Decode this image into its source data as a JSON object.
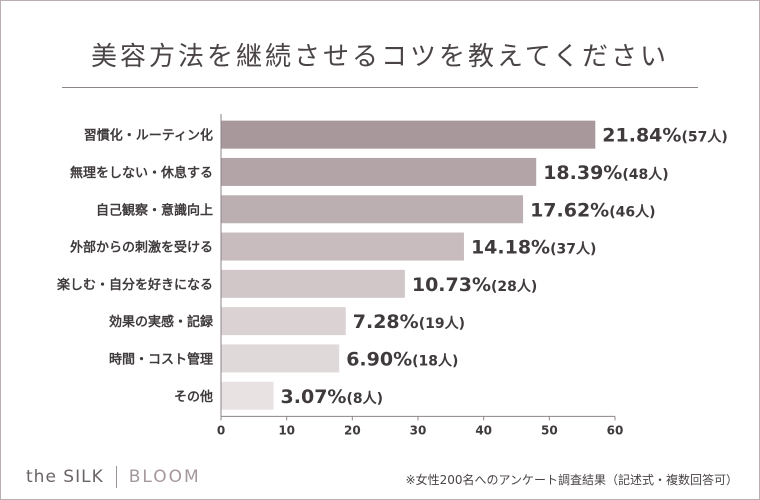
{
  "title": "美容方法を継続させるコツを教えてください",
  "footer": {
    "brand_left": "the SILK",
    "brand_right": "BLOOM",
    "note": "※女性200名へのアンケート調査結果（記述式・複数回答可）"
  },
  "chart_data": {
    "type": "bar",
    "orientation": "horizontal",
    "title": "美容方法を継続させるコツを教えてください",
    "categories": [
      "習慣化・ルーティン化",
      "無理をしない・休息する",
      "自己観察・意識向上",
      "外部からの刺激を受ける",
      "楽しむ・自分を好きになる",
      "効果の実感・記録",
      "時間・コスト管理",
      "その他"
    ],
    "values": [
      57,
      48,
      46,
      37,
      28,
      19,
      18,
      8
    ],
    "percent_labels": [
      "21.84%",
      "18.39%",
      "17.62%",
      "14.18%",
      "10.73%",
      "7.28%",
      "6.90%",
      "3.07%"
    ],
    "count_labels": [
      "(57人)",
      "(48人)",
      "(46人)",
      "(37人)",
      "(28人)",
      "(19人)",
      "(18人)",
      "(8人)"
    ],
    "xlim": [
      0,
      60
    ],
    "xticks": [
      0,
      10,
      20,
      30,
      40,
      50,
      60
    ],
    "xlabel": "",
    "ylabel": "",
    "grid": false,
    "bar_colors": [
      "#a8979b",
      "#b3a4a7",
      "#bcafb1",
      "#c8bcbe",
      "#d1c7c8",
      "#dad2d3",
      "#e0d9da",
      "#e8e2e3"
    ]
  }
}
